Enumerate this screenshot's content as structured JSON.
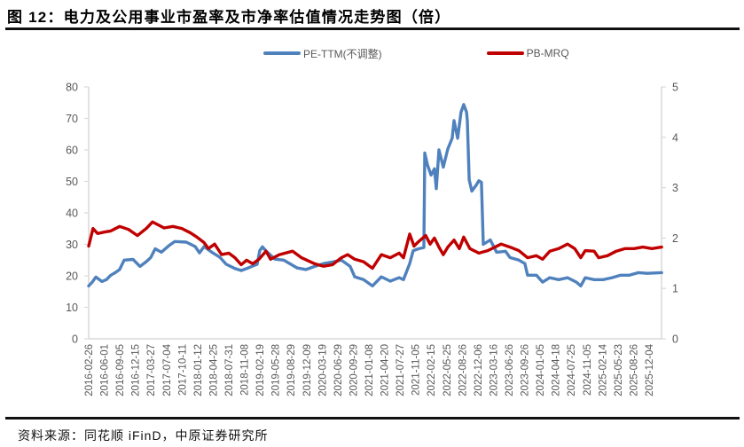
{
  "figure": {
    "title": "图 12：电力及公用事业市盈率及市净率估值情况走势图（倍）",
    "source": "资料来源：同花顺 iFinD，中原证券研究所"
  },
  "legend": [
    {
      "label": "PE-TTM(不调整)",
      "color": "#4F81BD"
    },
    {
      "label": "PB-MRQ",
      "color": "#C00000"
    }
  ],
  "chart_data": {
    "type": "line",
    "title": "电力及公用事业市盈率及市净率估值情况走势图（倍）",
    "xlabel": "",
    "ylabel": "",
    "legend_position": "top",
    "grid": false,
    "categories": [
      "2016-02-26",
      "2016-06-01",
      "2016-09-05",
      "2016-12-15",
      "2017-03-27",
      "2017-07-04",
      "2017-10-11",
      "2018-01-12",
      "2018-04-25",
      "2018-07-31",
      "2018-11-08",
      "2019-02-19",
      "2019-05-28",
      "2019-08-29",
      "2019-12-09",
      "2020-03-19",
      "2020-06-29",
      "2020-09-29",
      "2021-01-08",
      "2021-04-20",
      "2021-07-27",
      "2021-11-05",
      "2022-02-15",
      "2022-05-25",
      "2022-08-26",
      "2022-12-06",
      "2023-03-16",
      "2023-06-26",
      "2023-09-26",
      "2024-01-05",
      "2024-04-18",
      "2024-07-25",
      "2024-11-05",
      "2025-02-14",
      "2025-05-23",
      "2025-08-26",
      "2025-12-04"
    ],
    "y_left": {
      "range": [
        0,
        80
      ],
      "ticks": [
        0,
        10,
        20,
        30,
        40,
        50,
        60,
        70,
        80
      ]
    },
    "y_right": {
      "range": [
        0,
        5
      ],
      "ticks": [
        0,
        1,
        2,
        3,
        4,
        5
      ]
    },
    "series": [
      {
        "name": "PE-TTM(不调整)",
        "axis": "left",
        "color": "#4F81BD",
        "points": [
          [
            0.0,
            16.8
          ],
          [
            0.23,
            18.0
          ],
          [
            0.46,
            19.6
          ],
          [
            0.85,
            18.2
          ],
          [
            1.14,
            18.8
          ],
          [
            1.42,
            20.2
          ],
          [
            1.71,
            21.0
          ],
          [
            1.99,
            22.0
          ],
          [
            2.28,
            25.0
          ],
          [
            2.85,
            25.2
          ],
          [
            3.3,
            23.0
          ],
          [
            3.7,
            24.5
          ],
          [
            3.99,
            25.8
          ],
          [
            4.27,
            28.6
          ],
          [
            4.67,
            27.5
          ],
          [
            5.13,
            29.5
          ],
          [
            5.53,
            30.9
          ],
          [
            6.27,
            30.7
          ],
          [
            6.84,
            29.3
          ],
          [
            7.12,
            27.3
          ],
          [
            7.41,
            29.3
          ],
          [
            7.97,
            27.3
          ],
          [
            8.43,
            25.9
          ],
          [
            8.83,
            23.7
          ],
          [
            9.4,
            22.3
          ],
          [
            9.8,
            21.7
          ],
          [
            10.25,
            22.5
          ],
          [
            10.82,
            23.7
          ],
          [
            10.99,
            28.0
          ],
          [
            11.16,
            29.2
          ],
          [
            11.39,
            27.9
          ],
          [
            11.96,
            25.3
          ],
          [
            12.53,
            25.0
          ],
          [
            13.39,
            22.5
          ],
          [
            13.96,
            22.0
          ],
          [
            14.52,
            23.0
          ],
          [
            15.09,
            23.9
          ],
          [
            15.66,
            24.4
          ],
          [
            16.23,
            25.0
          ],
          [
            16.8,
            23.0
          ],
          [
            17.09,
            19.7
          ],
          [
            17.66,
            18.8
          ],
          [
            18.23,
            16.8
          ],
          [
            18.8,
            19.7
          ],
          [
            19.37,
            18.3
          ],
          [
            19.94,
            19.4
          ],
          [
            20.22,
            18.8
          ],
          [
            20.62,
            23.9
          ],
          [
            20.85,
            28.0
          ],
          [
            21.19,
            28.6
          ],
          [
            21.53,
            29.0
          ],
          [
            21.59,
            59.0
          ],
          [
            21.76,
            55.3
          ],
          [
            21.99,
            52.0
          ],
          [
            22.21,
            54.0
          ],
          [
            22.33,
            47.7
          ],
          [
            22.5,
            60.0
          ],
          [
            22.78,
            54.5
          ],
          [
            23.07,
            60.3
          ],
          [
            23.35,
            63.7
          ],
          [
            23.47,
            69.3
          ],
          [
            23.7,
            63.7
          ],
          [
            23.92,
            72.0
          ],
          [
            24.09,
            74.4
          ],
          [
            24.27,
            72.0
          ],
          [
            24.32,
            69.3
          ],
          [
            24.44,
            50.5
          ],
          [
            24.61,
            46.9
          ],
          [
            24.89,
            48.8
          ],
          [
            25.06,
            50.2
          ],
          [
            25.23,
            49.7
          ],
          [
            25.35,
            30.0
          ],
          [
            25.8,
            31.4
          ],
          [
            26.2,
            27.5
          ],
          [
            26.77,
            27.8
          ],
          [
            27.06,
            25.8
          ],
          [
            27.63,
            25.0
          ],
          [
            28.02,
            23.9
          ],
          [
            28.19,
            20.2
          ],
          [
            28.76,
            20.2
          ],
          [
            29.16,
            18.0
          ],
          [
            29.62,
            19.4
          ],
          [
            30.19,
            18.8
          ],
          [
            30.76,
            19.4
          ],
          [
            31.33,
            18.0
          ],
          [
            31.61,
            16.8
          ],
          [
            31.9,
            19.4
          ],
          [
            32.47,
            18.8
          ],
          [
            33.04,
            18.8
          ],
          [
            33.61,
            19.4
          ],
          [
            34.17,
            20.2
          ],
          [
            34.74,
            20.2
          ],
          [
            35.31,
            21.0
          ],
          [
            35.88,
            20.8
          ],
          [
            36.8,
            21.0
          ]
        ]
      },
      {
        "name": "PB-MRQ",
        "axis": "right",
        "color": "#C00000",
        "points": [
          [
            0.0,
            1.84
          ],
          [
            0.28,
            2.19
          ],
          [
            0.57,
            2.09
          ],
          [
            1.03,
            2.12
          ],
          [
            1.42,
            2.14
          ],
          [
            1.99,
            2.23
          ],
          [
            2.56,
            2.17
          ],
          [
            3.13,
            2.05
          ],
          [
            3.7,
            2.19
          ],
          [
            4.1,
            2.32
          ],
          [
            4.84,
            2.2
          ],
          [
            5.41,
            2.23
          ],
          [
            5.98,
            2.19
          ],
          [
            6.55,
            2.1
          ],
          [
            6.95,
            2.02
          ],
          [
            7.41,
            1.91
          ],
          [
            7.69,
            1.79
          ],
          [
            8.09,
            1.88
          ],
          [
            8.54,
            1.67
          ],
          [
            9.0,
            1.7
          ],
          [
            9.4,
            1.61
          ],
          [
            9.8,
            1.47
          ],
          [
            10.14,
            1.56
          ],
          [
            10.54,
            1.49
          ],
          [
            10.94,
            1.58
          ],
          [
            11.39,
            1.74
          ],
          [
            11.68,
            1.58
          ],
          [
            12.25,
            1.67
          ],
          [
            13.1,
            1.74
          ],
          [
            13.67,
            1.61
          ],
          [
            14.52,
            1.49
          ],
          [
            15.09,
            1.44
          ],
          [
            15.66,
            1.47
          ],
          [
            16.23,
            1.61
          ],
          [
            16.63,
            1.67
          ],
          [
            17.09,
            1.58
          ],
          [
            17.66,
            1.53
          ],
          [
            18.23,
            1.4
          ],
          [
            18.8,
            1.67
          ],
          [
            19.37,
            1.61
          ],
          [
            19.94,
            1.7
          ],
          [
            20.22,
            1.61
          ],
          [
            20.62,
            2.08
          ],
          [
            20.9,
            1.84
          ],
          [
            21.19,
            1.93
          ],
          [
            21.65,
            2.05
          ],
          [
            21.93,
            1.88
          ],
          [
            22.21,
            2.0
          ],
          [
            22.5,
            1.82
          ],
          [
            22.78,
            1.67
          ],
          [
            23.07,
            1.82
          ],
          [
            23.47,
            1.96
          ],
          [
            23.81,
            1.79
          ],
          [
            24.09,
            2.02
          ],
          [
            24.49,
            1.79
          ],
          [
            25.06,
            1.7
          ],
          [
            25.63,
            1.75
          ],
          [
            26.49,
            1.88
          ],
          [
            27.06,
            1.82
          ],
          [
            27.63,
            1.75
          ],
          [
            28.19,
            1.61
          ],
          [
            28.76,
            1.65
          ],
          [
            29.16,
            1.58
          ],
          [
            29.62,
            1.74
          ],
          [
            30.19,
            1.79
          ],
          [
            30.76,
            1.88
          ],
          [
            31.22,
            1.79
          ],
          [
            31.61,
            1.61
          ],
          [
            31.9,
            1.75
          ],
          [
            32.47,
            1.74
          ],
          [
            32.76,
            1.61
          ],
          [
            33.32,
            1.65
          ],
          [
            33.89,
            1.74
          ],
          [
            34.46,
            1.79
          ],
          [
            35.03,
            1.79
          ],
          [
            35.6,
            1.82
          ],
          [
            36.17,
            1.79
          ],
          [
            36.8,
            1.82
          ]
        ]
      }
    ]
  }
}
